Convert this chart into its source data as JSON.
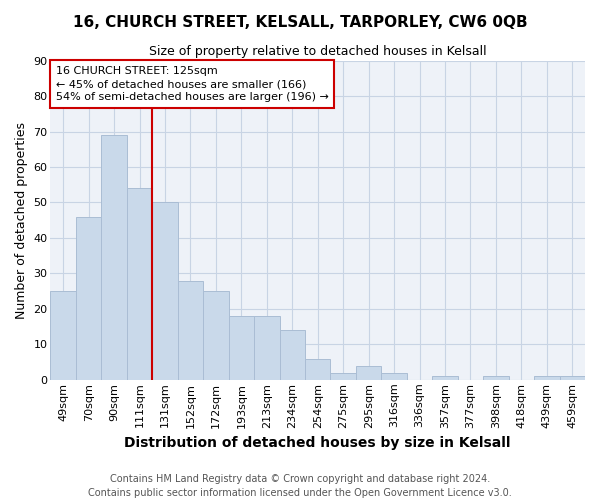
{
  "title1": "16, CHURCH STREET, KELSALL, TARPORLEY, CW6 0QB",
  "title2": "Size of property relative to detached houses in Kelsall",
  "xlabel": "Distribution of detached houses by size in Kelsall",
  "ylabel": "Number of detached properties",
  "footnote1": "Contains HM Land Registry data © Crown copyright and database right 2024.",
  "footnote2": "Contains public sector information licensed under the Open Government Licence v3.0.",
  "annotation_line1": "16 CHURCH STREET: 125sqm",
  "annotation_line2": "← 45% of detached houses are smaller (166)",
  "annotation_line3": "54% of semi-detached houses are larger (196) →",
  "bar_labels": [
    "49sqm",
    "70sqm",
    "90sqm",
    "111sqm",
    "131sqm",
    "152sqm",
    "172sqm",
    "193sqm",
    "213sqm",
    "234sqm",
    "254sqm",
    "275sqm",
    "295sqm",
    "316sqm",
    "336sqm",
    "357sqm",
    "377sqm",
    "398sqm",
    "418sqm",
    "439sqm",
    "459sqm"
  ],
  "bar_values": [
    25,
    46,
    69,
    54,
    50,
    28,
    25,
    18,
    18,
    14,
    6,
    2,
    4,
    2,
    0,
    1,
    0,
    1,
    0,
    1,
    1
  ],
  "bar_color": "#c9d9ea",
  "bar_edgecolor": "#aabdd4",
  "vline_color": "#cc0000",
  "annotation_box_color": "#cc0000",
  "ylim": [
    0,
    90
  ],
  "yticks": [
    0,
    10,
    20,
    30,
    40,
    50,
    60,
    70,
    80,
    90
  ],
  "grid_color": "#c8d4e4",
  "bg_color": "#eef2f8",
  "title1_fontsize": 11,
  "title2_fontsize": 9,
  "xlabel_fontsize": 10,
  "ylabel_fontsize": 9,
  "tick_fontsize": 8,
  "annot_fontsize": 8,
  "footnote_fontsize": 7
}
